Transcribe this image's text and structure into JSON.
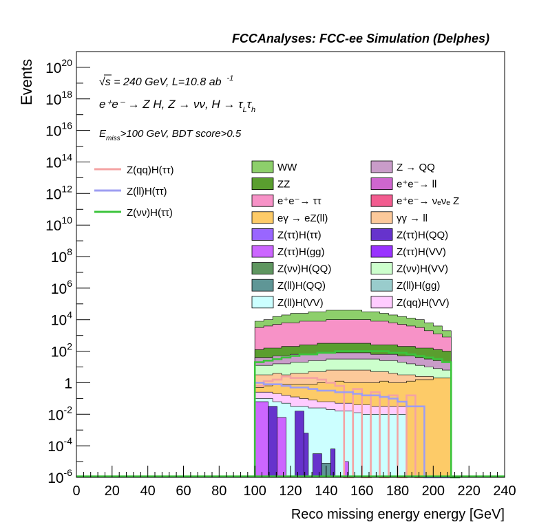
{
  "chart_data": {
    "type": "bar",
    "stacked": true,
    "title": "FCCAnalyses: FCC-ee Simulation (Delphes)",
    "xlabel": "Reco missing energy energy [GeV]",
    "ylabel": "Events",
    "xlim": [
      0,
      240
    ],
    "ylim": [
      1e-06,
      1e+21
    ],
    "yscale": "log",
    "grid": false,
    "annotations": {
      "energy": "√s = 240 GeV, L=10.8 ab",
      "energy_sup": "-1",
      "process_lhs": "e⁺e⁻ → Z H, Z → νν, H → τ",
      "tau_sub_L": "L",
      "tau_mid": "τ",
      "tau_sub_h": "h",
      "selection_E": "E",
      "selection_sub": "miss",
      "selection_rest": ">100 GeV, BDT score>0.5"
    },
    "x_ticks": [
      "0",
      "20",
      "40",
      "60",
      "80",
      "100",
      "120",
      "140",
      "160",
      "180",
      "200",
      "220",
      "240"
    ],
    "y_ticks": [
      {
        "v": "1e-6",
        "base": "10",
        "exp": "-6"
      },
      {
        "v": "1e-4",
        "base": "10",
        "exp": "-4"
      },
      {
        "v": "1e-2",
        "base": "10",
        "exp": "-2"
      },
      {
        "v": "1",
        "base": "1",
        "exp": ""
      },
      {
        "v": "1e2",
        "base": "10",
        "exp": "2"
      },
      {
        "v": "1e4",
        "base": "10",
        "exp": "4"
      },
      {
        "v": "1e6",
        "base": "10",
        "exp": "6"
      },
      {
        "v": "1e8",
        "base": "10",
        "exp": "8"
      },
      {
        "v": "1e10",
        "base": "10",
        "exp": "10"
      },
      {
        "v": "1e12",
        "base": "10",
        "exp": "12"
      },
      {
        "v": "1e14",
        "base": "10",
        "exp": "14"
      },
      {
        "v": "1e16",
        "base": "10",
        "exp": "16"
      },
      {
        "v": "1e18",
        "base": "10",
        "exp": "18"
      },
      {
        "v": "1e20",
        "base": "10",
        "exp": "20"
      }
    ],
    "signal_legend": [
      {
        "name": "Z(qq)H(ττ)",
        "color": "#f4a3a3"
      },
      {
        "name": "Z(ll)H(ττ)",
        "color": "#9e9ef2"
      },
      {
        "name": "Z(νν)H(ττ)",
        "color": "#3cc43c"
      }
    ],
    "background_legend": [
      {
        "name": "WW",
        "color": "#8dcf6b"
      },
      {
        "name": "Z → QQ",
        "color": "#c99cc9"
      },
      {
        "name": "ZZ",
        "color": "#5a9e2f"
      },
      {
        "name": "e⁺e⁻→ ll",
        "color": "#cf66cf"
      },
      {
        "name": "e⁺e⁻→ ττ",
        "color": "#f792c7"
      },
      {
        "name": "e⁺e⁻→ νₑνₑ Z",
        "color": "#f25c8f"
      },
      {
        "name": "eγ → eZ(ll)",
        "color": "#fdcb68"
      },
      {
        "name": "γγ → ll",
        "color": "#fcc99a"
      },
      {
        "name": "Z(ττ)H(ττ)",
        "color": "#9966ff"
      },
      {
        "name": "Z(ττ)H(QQ)",
        "color": "#6633cc"
      },
      {
        "name": "Z(ττ)H(gg)",
        "color": "#cc66ff"
      },
      {
        "name": "Z(ττ)H(VV)",
        "color": "#9933ff"
      },
      {
        "name": "Z(νν)H(QQ)",
        "color": "#5f9660"
      },
      {
        "name": "Z(νν)H(VV)",
        "color": "#ccffcc"
      },
      {
        "name": "Z(ll)H(QQ)",
        "color": "#5f9696"
      },
      {
        "name": "Z(ll)H(gg)",
        "color": "#99cccc"
      },
      {
        "name": "Z(ll)H(VV)",
        "color": "#ccffff"
      },
      {
        "name": "Z(qq)H(VV)",
        "color": "#ffccff"
      }
    ],
    "bins": {
      "start": 100,
      "width": 2.5,
      "count": 46
    },
    "stack_bands": [
      {
        "name": "Z(ll)H(VV)",
        "color": "#ccffff",
        "log_top": [
          -1,
          -1,
          -1,
          -1,
          -1.2,
          -1.2,
          -1.3,
          -1.3,
          -1.5,
          -1.5,
          -1.5,
          -1.5,
          -1.6,
          -1.6,
          -1.6,
          -1.6,
          -1.7,
          -1.7,
          -1.8,
          -1.8,
          -1.8,
          -1.8,
          -1.9,
          -1.9,
          -2,
          -2,
          -2,
          -2,
          -2,
          -2,
          -2,
          -2,
          -2,
          -2,
          -6,
          -6,
          -6,
          -6,
          -6,
          -6,
          -6,
          -6,
          -6,
          -6,
          -6,
          -6
        ]
      },
      {
        "name": "Z(qq)H(VV)",
        "color": "#ffccff",
        "log_top": [
          -0.6,
          -0.6,
          -0.6,
          -0.6,
          -0.7,
          -0.7,
          -0.8,
          -0.8,
          -0.9,
          -0.9,
          -1,
          -1,
          -1.1,
          -1.1,
          -1.2,
          -1.2,
          -1.2,
          -1.2,
          -1.3,
          -1.3,
          -1.3,
          -1.3,
          -1.4,
          -1.4,
          -1.4,
          -1.4,
          -1.5,
          -1.5,
          -1.5,
          -1.5,
          -1.5,
          -1.5,
          -1.5,
          -1.5,
          -6,
          -6,
          -6,
          -6,
          -6,
          -6,
          -6,
          -6,
          -6,
          -6,
          -6,
          -6
        ]
      },
      {
        "name": "γγ → ll",
        "color": "#fdcb68",
        "log_top": [
          -0.3,
          -0.3,
          -0.2,
          -0.2,
          -0.1,
          -0.1,
          -0.1,
          -0.1,
          -0.1,
          -0.1,
          -0.1,
          -0.1,
          -0.1,
          -0.1,
          0,
          0,
          0,
          0,
          0.1,
          0.1,
          0,
          0,
          0,
          0,
          0,
          0,
          0,
          0,
          0.1,
          0.1,
          0,
          0,
          0,
          0,
          0.1,
          0.1,
          0.2,
          0.2,
          0.2,
          0.2,
          0.3,
          0.3,
          0.3,
          0.3,
          -6,
          -6
        ]
      },
      {
        "name": "Z → QQ",
        "color": "#fcc99a",
        "log_top": [
          0.5,
          0.5,
          0.5,
          0.5,
          0.6,
          0.6,
          0.5,
          0.5,
          0.6,
          0.6,
          0.6,
          0.6,
          0.7,
          0.7,
          0.7,
          0.7,
          0.8,
          0.8,
          0.8,
          0.8,
          0.8,
          0.8,
          0.8,
          0.8,
          0.8,
          0.8,
          0.7,
          0.7,
          0.7,
          0.7,
          0.6,
          0.6,
          0.5,
          0.5,
          0.5,
          0.5,
          0.4,
          0.4,
          0.4,
          0.4,
          0.3,
          0.3,
          0.3,
          0.3,
          -6,
          -6
        ]
      },
      {
        "name": "Z(νν)H(VV)",
        "color": "#ccffcc",
        "log_top": [
          1.1,
          1.1,
          1.1,
          1.1,
          1.2,
          1.2,
          1.2,
          1.2,
          1.3,
          1.3,
          1.3,
          1.3,
          1.4,
          1.4,
          1.4,
          1.4,
          1.5,
          1.5,
          1.5,
          1.5,
          1.5,
          1.5,
          1.5,
          1.5,
          1.5,
          1.5,
          1.5,
          1.5,
          1.4,
          1.4,
          1.4,
          1.4,
          1.3,
          1.3,
          1.2,
          1.2,
          1.1,
          1.1,
          1,
          1,
          0.9,
          0.9,
          0.8,
          0.8,
          -6,
          -6
        ]
      },
      {
        "name": "e⁺e⁻→ ll",
        "color": "#c99cc9",
        "log_top": [
          1.6,
          1.6,
          1.6,
          1.6,
          1.7,
          1.7,
          1.7,
          1.7,
          1.8,
          1.8,
          1.8,
          1.8,
          1.8,
          1.8,
          1.9,
          1.9,
          1.9,
          1.9,
          1.9,
          1.9,
          1.9,
          1.9,
          1.9,
          1.9,
          1.9,
          1.9,
          1.8,
          1.8,
          1.8,
          1.8,
          1.8,
          1.8,
          1.7,
          1.7,
          1.7,
          1.7,
          1.6,
          1.6,
          1.5,
          1.5,
          1.4,
          1.4,
          1.3,
          1.3,
          -6,
          -6
        ]
      },
      {
        "name": "ZZ",
        "color": "#5a9e2f",
        "log_top": [
          2.1,
          2.1,
          2.2,
          2.2,
          2.2,
          2.2,
          2.3,
          2.3,
          2.3,
          2.3,
          2.4,
          2.4,
          2.4,
          2.4,
          2.5,
          2.5,
          2.5,
          2.5,
          2.5,
          2.5,
          2.5,
          2.5,
          2.5,
          2.5,
          2.5,
          2.5,
          2.4,
          2.4,
          2.4,
          2.4,
          2.4,
          2.4,
          2.3,
          2.3,
          2.3,
          2.3,
          2.2,
          2.2,
          2.2,
          2.2,
          2.1,
          2.1,
          2,
          2,
          -6,
          -6
        ]
      },
      {
        "name": "e⁺e⁻→ ττ",
        "color": "#f792c7",
        "log_top": [
          3.5,
          3.5,
          3.6,
          3.6,
          3.7,
          3.7,
          3.8,
          3.8,
          3.8,
          3.8,
          3.9,
          3.9,
          3.9,
          3.9,
          3.9,
          3.9,
          4,
          4,
          4,
          4,
          4,
          4,
          4,
          4,
          4,
          4,
          3.9,
          3.9,
          3.9,
          3.9,
          3.8,
          3.8,
          3.7,
          3.7,
          3.6,
          3.6,
          3.5,
          3.5,
          3.3,
          3.3,
          3.1,
          3.1,
          2.9,
          2.9,
          -6,
          -6
        ]
      },
      {
        "name": "WW",
        "color": "#8dcf6b",
        "log_top": [
          3.9,
          3.9,
          4,
          4,
          4.2,
          4.2,
          4.3,
          4.3,
          4.4,
          4.4,
          4.4,
          4.4,
          4.5,
          4.5,
          4.5,
          4.5,
          4.6,
          4.6,
          4.6,
          4.6,
          4.6,
          4.6,
          4.6,
          4.6,
          4.5,
          4.5,
          4.5,
          4.5,
          4.4,
          4.4,
          4.3,
          4.3,
          4.2,
          4.2,
          4.1,
          4.1,
          4,
          4,
          3.8,
          3.8,
          3.6,
          3.6,
          3.3,
          3.3,
          -6,
          -6
        ]
      }
    ],
    "spikes": [
      {
        "name": "Z(ττ)H(gg)",
        "color": "#cc66ff",
        "x0": 100,
        "x1": 107.5,
        "log_top": -1.2
      },
      {
        "name": "Z(ττ)H(QQ)",
        "color": "#6633cc",
        "x0": 107.5,
        "x1": 112.5,
        "log_top": -1.5
      },
      {
        "name": "Z(ττ)H(gg)",
        "color": "#cc66ff",
        "x0": 112.5,
        "x1": 117.5,
        "log_top": -2.2
      },
      {
        "name": "Z(ττ)H(QQ)",
        "color": "#6633cc",
        "x0": 122.5,
        "x1": 127.5,
        "log_top": -1.8
      },
      {
        "name": "Z(ττ)H(QQ)",
        "color": "#6633cc",
        "x0": 127.5,
        "x1": 130,
        "log_top": -3.2
      },
      {
        "name": "Z(ττ)H(QQ)",
        "color": "#6633cc",
        "x0": 132.5,
        "x1": 137.5,
        "log_top": -4.5
      },
      {
        "name": "Z(ll)H(QQ)",
        "color": "#5f9696",
        "x0": 137.5,
        "x1": 142.5,
        "log_top": -5.1
      },
      {
        "name": "Z(ττ)H(QQ)",
        "color": "#6633cc",
        "x0": 142.5,
        "x1": 145,
        "log_top": -4.2
      },
      {
        "name": "Z(ττ)H(gg)",
        "color": "#cc66ff",
        "x0": 150,
        "x1": 152.5,
        "log_top": -5
      }
    ],
    "signal_curves": [
      {
        "name": "Z(qq)H(ττ)",
        "color": "#f4a3a3",
        "log_y": [
          -0.2,
          -0.2,
          0.1,
          0.1,
          0.2,
          0.2,
          0.4,
          0.4,
          0.3,
          0.3,
          0.3,
          0.3,
          0.3,
          0.3,
          0.2,
          0.2,
          0,
          0,
          -0.2,
          -0.2,
          -6,
          -6,
          -0.4,
          -0.4,
          -6,
          -6,
          -0.6,
          -0.6,
          -6,
          -6,
          -0.8,
          -0.8,
          -6,
          -6,
          -0.8,
          -0.8,
          -6,
          -6,
          -6,
          -6,
          -6,
          -6,
          -6,
          -6,
          -6,
          -6
        ]
      },
      {
        "name": "Z(ll)H(ττ)",
        "color": "#9e9ef2",
        "log_y": [
          0,
          0,
          -0.1,
          -0.1,
          -0.1,
          -0.1,
          -0.2,
          -0.2,
          -0.3,
          -0.3,
          -0.3,
          -0.3,
          -0.4,
          -0.4,
          -0.5,
          -0.5,
          -0.5,
          -0.5,
          -0.6,
          -0.6,
          -0.6,
          -0.6,
          -0.7,
          -0.7,
          -0.8,
          -0.8,
          -0.8,
          -0.8,
          -0.9,
          -0.9,
          -1,
          -1,
          -1.2,
          -1.2,
          -1.5,
          -1.5,
          -1.5,
          -1.5,
          -6,
          -6,
          -6,
          -6,
          -6,
          -6,
          -6,
          -6
        ]
      },
      {
        "name": "Z(νν)H(ττ)",
        "color": "#3cc43c",
        "log_y": [
          1.3,
          1.3,
          1.4,
          1.4,
          1.5,
          1.5,
          1.6,
          1.6,
          1.7,
          1.7,
          1.8,
          1.8,
          1.8,
          1.8,
          1.9,
          1.9,
          1.9,
          1.9,
          2,
          2,
          2,
          2,
          2,
          2,
          2,
          2,
          2,
          2,
          2,
          2,
          1.9,
          1.9,
          1.9,
          1.9,
          1.8,
          1.8,
          1.7,
          1.7,
          1.6,
          1.6,
          1.5,
          1.5,
          1.3,
          1.3,
          -6,
          -6
        ]
      }
    ]
  }
}
